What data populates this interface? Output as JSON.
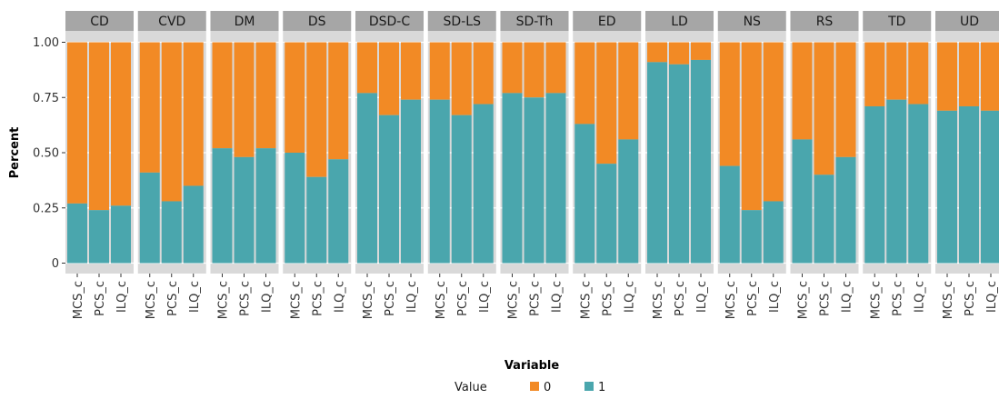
{
  "chart_data": {
    "type": "bar",
    "stacked": true,
    "facet_labels": [
      "CD",
      "CVD",
      "DM",
      "DS",
      "DSD-C",
      "SD-LS",
      "SD-Th",
      "ED",
      "LD",
      "NS",
      "RS",
      "TD",
      "UD"
    ],
    "categories": [
      "MCS_c",
      "PCS_c",
      "ILQ_c"
    ],
    "series": [
      {
        "name": "1",
        "values": [
          [
            0.27,
            0.24,
            0.26
          ],
          [
            0.41,
            0.28,
            0.35
          ],
          [
            0.52,
            0.48,
            0.52
          ],
          [
            0.5,
            0.39,
            0.47
          ],
          [
            0.77,
            0.67,
            0.74
          ],
          [
            0.74,
            0.67,
            0.72
          ],
          [
            0.77,
            0.75,
            0.77
          ],
          [
            0.63,
            0.45,
            0.56
          ],
          [
            0.91,
            0.9,
            0.92
          ],
          [
            0.44,
            0.24,
            0.28
          ],
          [
            0.56,
            0.4,
            0.48
          ],
          [
            0.71,
            0.74,
            0.72
          ],
          [
            0.69,
            0.71,
            0.69
          ]
        ]
      },
      {
        "name": "0",
        "values": [
          [
            0.73,
            0.76,
            0.74
          ],
          [
            0.59,
            0.72,
            0.65
          ],
          [
            0.48,
            0.52,
            0.48
          ],
          [
            0.5,
            0.61,
            0.53
          ],
          [
            0.23,
            0.33,
            0.26
          ],
          [
            0.26,
            0.33,
            0.28
          ],
          [
            0.23,
            0.25,
            0.23
          ],
          [
            0.37,
            0.55,
            0.44
          ],
          [
            0.09,
            0.1,
            0.08
          ],
          [
            0.56,
            0.76,
            0.72
          ],
          [
            0.44,
            0.6,
            0.52
          ],
          [
            0.29,
            0.26,
            0.28
          ],
          [
            0.31,
            0.29,
            0.31
          ]
        ]
      }
    ],
    "ylim": [
      0,
      1
    ],
    "yticks": [
      0,
      0.25,
      0.5,
      0.75,
      1
    ],
    "ytick_labels": [
      "0",
      "0.25",
      "0.50",
      "0.75",
      "1.00"
    ],
    "xlabel": "Variable",
    "ylabel": "Percent",
    "legend": {
      "title": "Value",
      "entries": [
        "0",
        "1"
      ],
      "position": "bottom"
    },
    "colors": {
      "1": "#4aa6ad",
      "0": "#f28a25",
      "panel": "#d9d9d9",
      "strip": "#a6a6a6",
      "grid": "#ffffff"
    }
  }
}
